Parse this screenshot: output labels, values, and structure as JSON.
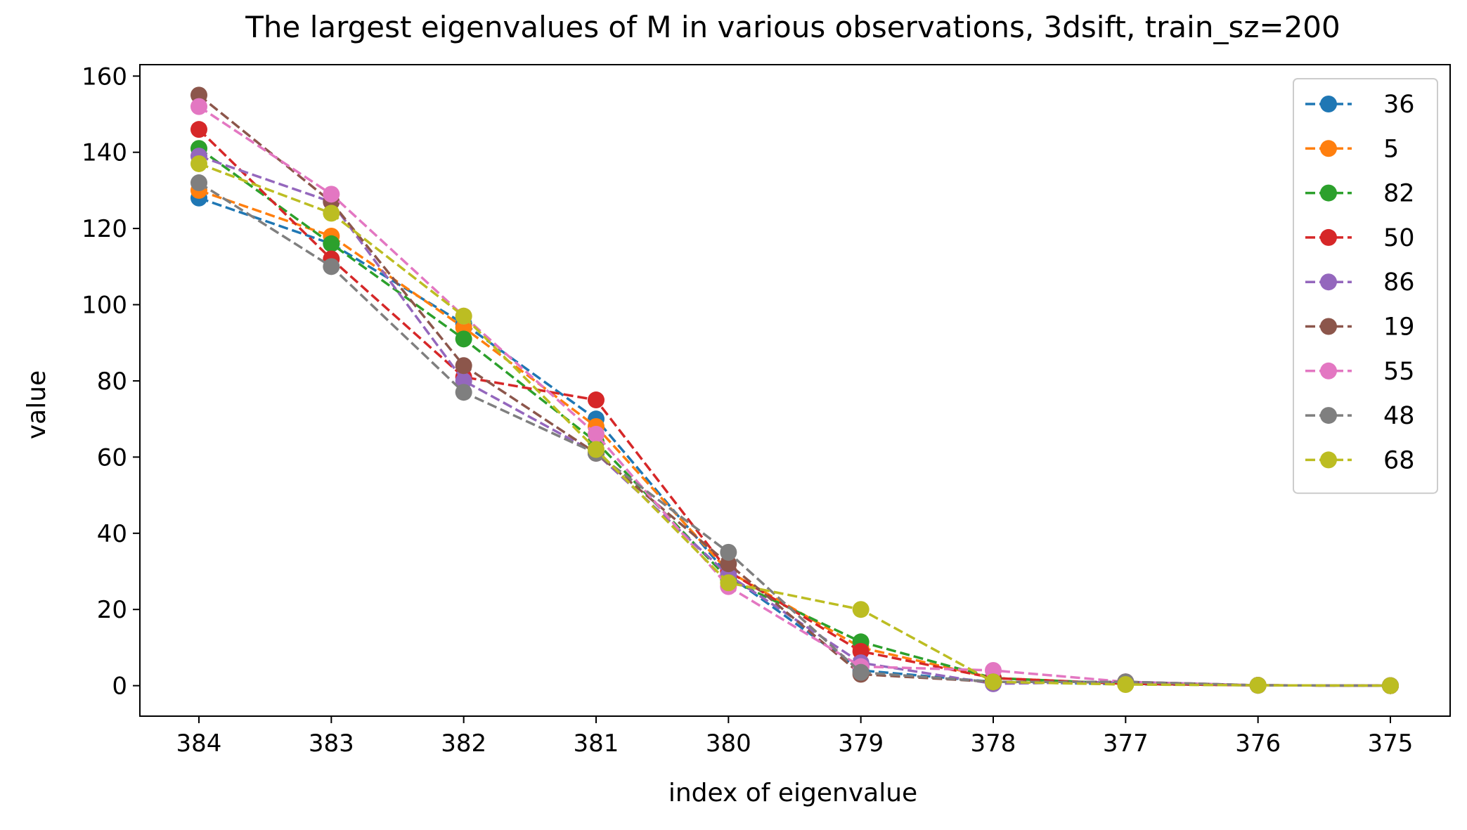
{
  "chart_data": {
    "type": "line",
    "title": "The largest eigenvalues of M in various observations, 3dsift, train_sz=200",
    "xlabel": "index of eigenvalue",
    "ylabel": "value",
    "x": [
      "384",
      "383",
      "382",
      "381",
      "380",
      "379",
      "378",
      "377",
      "376",
      "375"
    ],
    "ylim": [
      -8,
      163
    ],
    "yticks": [
      0,
      20,
      40,
      60,
      80,
      100,
      120,
      140,
      160
    ],
    "grid": false,
    "legend_position": "top-right",
    "line_style": "dashed",
    "marker": "circle",
    "series": [
      {
        "name": "36",
        "color": "#1f77b4",
        "values": [
          128,
          116,
          95,
          70,
          29,
          4,
          1,
          0.4,
          0.1,
          0
        ]
      },
      {
        "name": "5",
        "color": "#ff7f0e",
        "values": [
          130,
          118,
          94,
          68,
          30,
          10,
          2,
          0.5,
          0.1,
          0
        ]
      },
      {
        "name": "82",
        "color": "#2ca02c",
        "values": [
          141,
          116,
          91,
          64,
          28,
          11.5,
          2,
          0.5,
          0.1,
          0
        ]
      },
      {
        "name": "50",
        "color": "#d62728",
        "values": [
          146,
          112,
          81,
          75,
          30,
          9,
          2,
          0.5,
          0.1,
          0
        ]
      },
      {
        "name": "86",
        "color": "#9467bd",
        "values": [
          139,
          127,
          80,
          61,
          29,
          6,
          0.5,
          1,
          0.1,
          0
        ]
      },
      {
        "name": "19",
        "color": "#8c564b",
        "values": [
          155,
          127,
          84,
          61,
          32,
          3,
          1,
          1,
          0.1,
          0
        ]
      },
      {
        "name": "55",
        "color": "#e377c2",
        "values": [
          152,
          129,
          97,
          66,
          26,
          5,
          4,
          1,
          0.1,
          0
        ]
      },
      {
        "name": "48",
        "color": "#7f7f7f",
        "values": [
          132,
          110,
          77,
          61,
          35,
          3.5,
          1,
          1,
          0.1,
          0
        ]
      },
      {
        "name": "68",
        "color": "#bcbd22",
        "values": [
          137,
          124,
          97,
          62,
          27,
          20,
          1,
          0.3,
          0.1,
          0
        ]
      }
    ]
  }
}
